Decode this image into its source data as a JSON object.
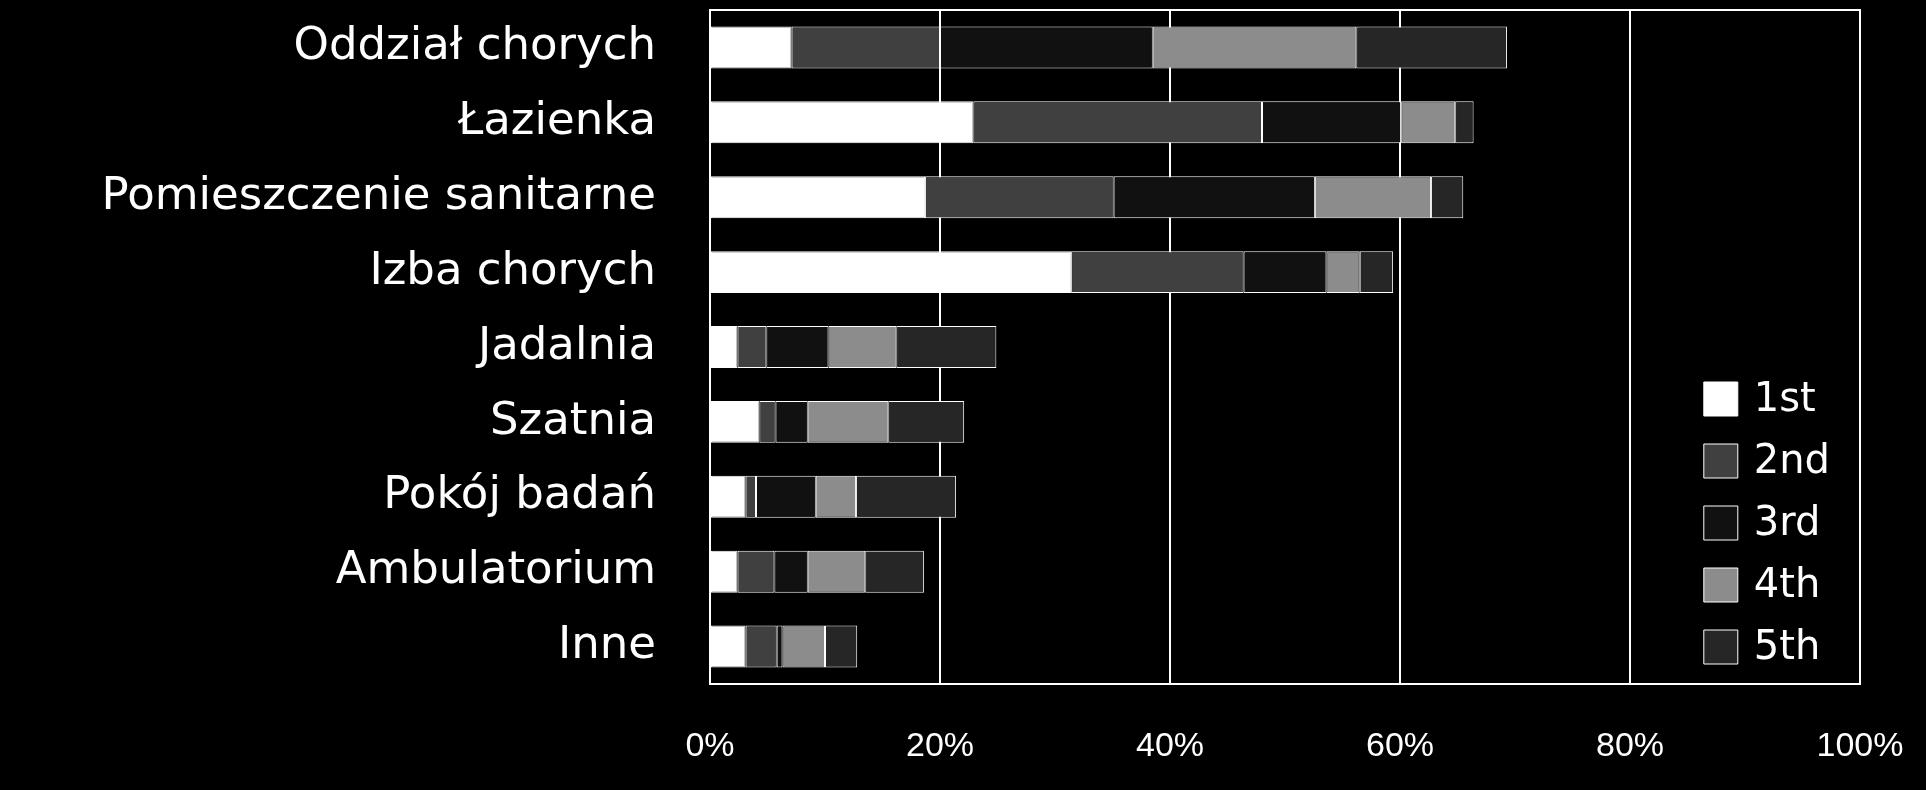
{
  "chart_data": {
    "type": "bar",
    "orientation": "horizontal",
    "stacked": true,
    "categories": [
      "Oddział chorych",
      "Łazienka",
      "Pomieszczenie sanitarne",
      "Izba chorych",
      "Jadalnia",
      "Szatnia",
      "Pokój badań",
      "Ambulatorium",
      "Inne"
    ],
    "series": [
      {
        "name": "1st",
        "color": "#ffffff",
        "values": [
          7.1,
          22.9,
          18.7,
          31.4,
          2.4,
          4.3,
          3.1,
          2.4,
          3.1
        ]
      },
      {
        "name": "2nd",
        "color": "#404040",
        "values": [
          12.9,
          25.1,
          16.4,
          15.0,
          2.5,
          1.4,
          0.9,
          3.2,
          2.7
        ]
      },
      {
        "name": "3rd",
        "color": "#111111",
        "values": [
          18.5,
          12.1,
          17.5,
          7.2,
          5.4,
          2.8,
          5.2,
          2.9,
          0.5
        ]
      },
      {
        "name": "4th",
        "color": "#8c8c8c",
        "values": [
          17.7,
          4.7,
          10.1,
          2.9,
          5.9,
          7.0,
          3.5,
          5.0,
          3.7
        ]
      },
      {
        "name": "5th",
        "color": "#262626",
        "values": [
          13.1,
          1.6,
          2.8,
          2.9,
          8.7,
          6.6,
          8.7,
          5.1,
          2.8
        ]
      }
    ],
    "xlim": [
      0,
      100
    ],
    "xticks": [
      {
        "value": 0,
        "label": "0%"
      },
      {
        "value": 20,
        "label": "20%"
      },
      {
        "value": 40,
        "label": "40%"
      },
      {
        "value": 60,
        "label": "60%"
      },
      {
        "value": 80,
        "label": "80%"
      },
      {
        "value": 100,
        "label": "100%"
      }
    ],
    "grid": "x",
    "legend": "bottom right"
  }
}
